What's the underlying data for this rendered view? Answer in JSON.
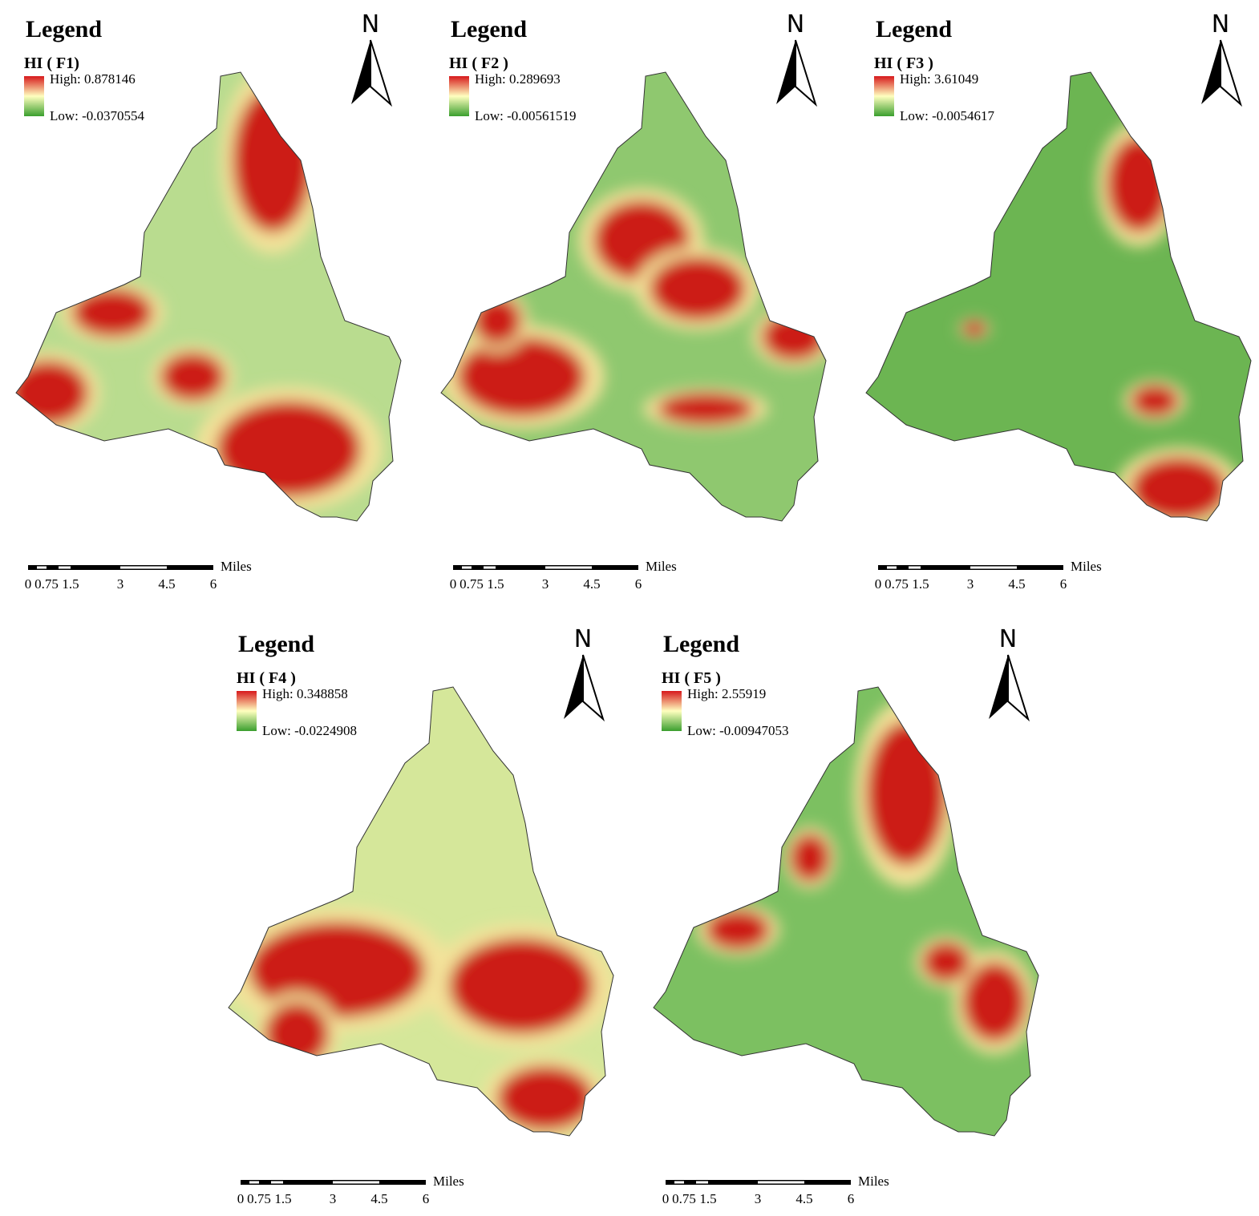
{
  "panels": [
    {
      "legend_title": "Legend",
      "layer": "HI ( F1)",
      "high": "High: 0.878146",
      "low": "Low: -0.0370554",
      "north": "N",
      "scale_ticks": [
        "0",
        "0.75",
        "1.5",
        "3",
        "4.5",
        "6"
      ],
      "scale_unit": "Miles"
    },
    {
      "legend_title": "Legend",
      "layer": "HI ( F2 )",
      "high": "High: 0.289693",
      "low": "Low: -0.00561519",
      "north": "N",
      "scale_ticks": [
        "0",
        "0.75",
        "1.5",
        "3",
        "4.5",
        "6"
      ],
      "scale_unit": "Miles"
    },
    {
      "legend_title": "Legend",
      "layer": "HI ( F3 )",
      "high": "High: 3.61049",
      "low": "Low: -0.0054617",
      "north": "N",
      "scale_ticks": [
        "0",
        "0.75",
        "1.5",
        "3",
        "4.5",
        "6"
      ],
      "scale_unit": "Miles"
    },
    {
      "legend_title": "Legend",
      "layer": "HI ( F4 )",
      "high": "High: 0.348858",
      "low": "Low: -0.0224908",
      "north": "N",
      "scale_ticks": [
        "0",
        "0.75",
        "1.5",
        "3",
        "4.5",
        "6"
      ],
      "scale_unit": "Miles"
    },
    {
      "legend_title": "Legend",
      "layer": "HI ( F5 )",
      "high": "High: 2.55919",
      "low": "Low: -0.00947053",
      "north": "N",
      "scale_ticks": [
        "0",
        "0.75",
        "1.5",
        "3",
        "4.5",
        "6"
      ],
      "scale_unit": "Miles"
    }
  ]
}
